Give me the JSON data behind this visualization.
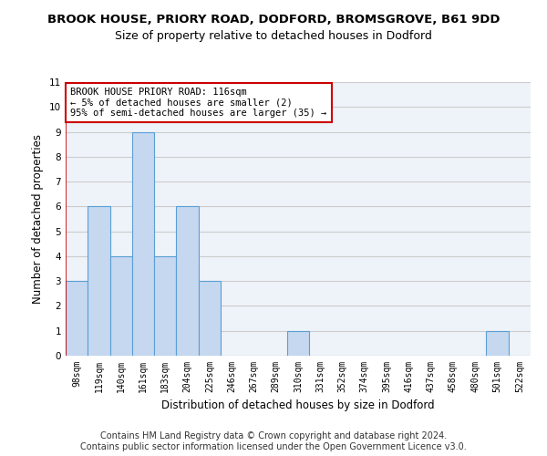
{
  "title": "BROOK HOUSE, PRIORY ROAD, DODFORD, BROMSGROVE, B61 9DD",
  "subtitle": "Size of property relative to detached houses in Dodford",
  "xlabel": "Distribution of detached houses by size in Dodford",
  "ylabel": "Number of detached properties",
  "categories": [
    "98sqm",
    "119sqm",
    "140sqm",
    "161sqm",
    "183sqm",
    "204sqm",
    "225sqm",
    "246sqm",
    "267sqm",
    "289sqm",
    "310sqm",
    "331sqm",
    "352sqm",
    "374sqm",
    "395sqm",
    "416sqm",
    "437sqm",
    "458sqm",
    "480sqm",
    "501sqm",
    "522sqm"
  ],
  "values": [
    3,
    6,
    4,
    9,
    4,
    6,
    3,
    0,
    0,
    0,
    1,
    0,
    0,
    0,
    0,
    0,
    0,
    0,
    0,
    1,
    0
  ],
  "bar_color": "#c5d8f0",
  "bar_edge_color": "#5a9fd4",
  "annotation_text": "BROOK HOUSE PRIORY ROAD: 116sqm\n← 5% of detached houses are smaller (2)\n95% of semi-detached houses are larger (35) →",
  "annotation_box_color": "#ffffff",
  "annotation_box_edge_color": "#cc0000",
  "redline_x": -0.5,
  "ylim": [
    0,
    11
  ],
  "yticks": [
    0,
    1,
    2,
    3,
    4,
    5,
    6,
    7,
    8,
    9,
    10,
    11
  ],
  "grid_color": "#cccccc",
  "footer_line1": "Contains HM Land Registry data © Crown copyright and database right 2024.",
  "footer_line2": "Contains public sector information licensed under the Open Government Licence v3.0.",
  "bg_color": "#eef3f9",
  "title_fontsize": 9.5,
  "subtitle_fontsize": 9,
  "tick_fontsize": 7,
  "ylabel_fontsize": 8.5,
  "xlabel_fontsize": 8.5,
  "footer_fontsize": 7,
  "annotation_fontsize": 7.5
}
